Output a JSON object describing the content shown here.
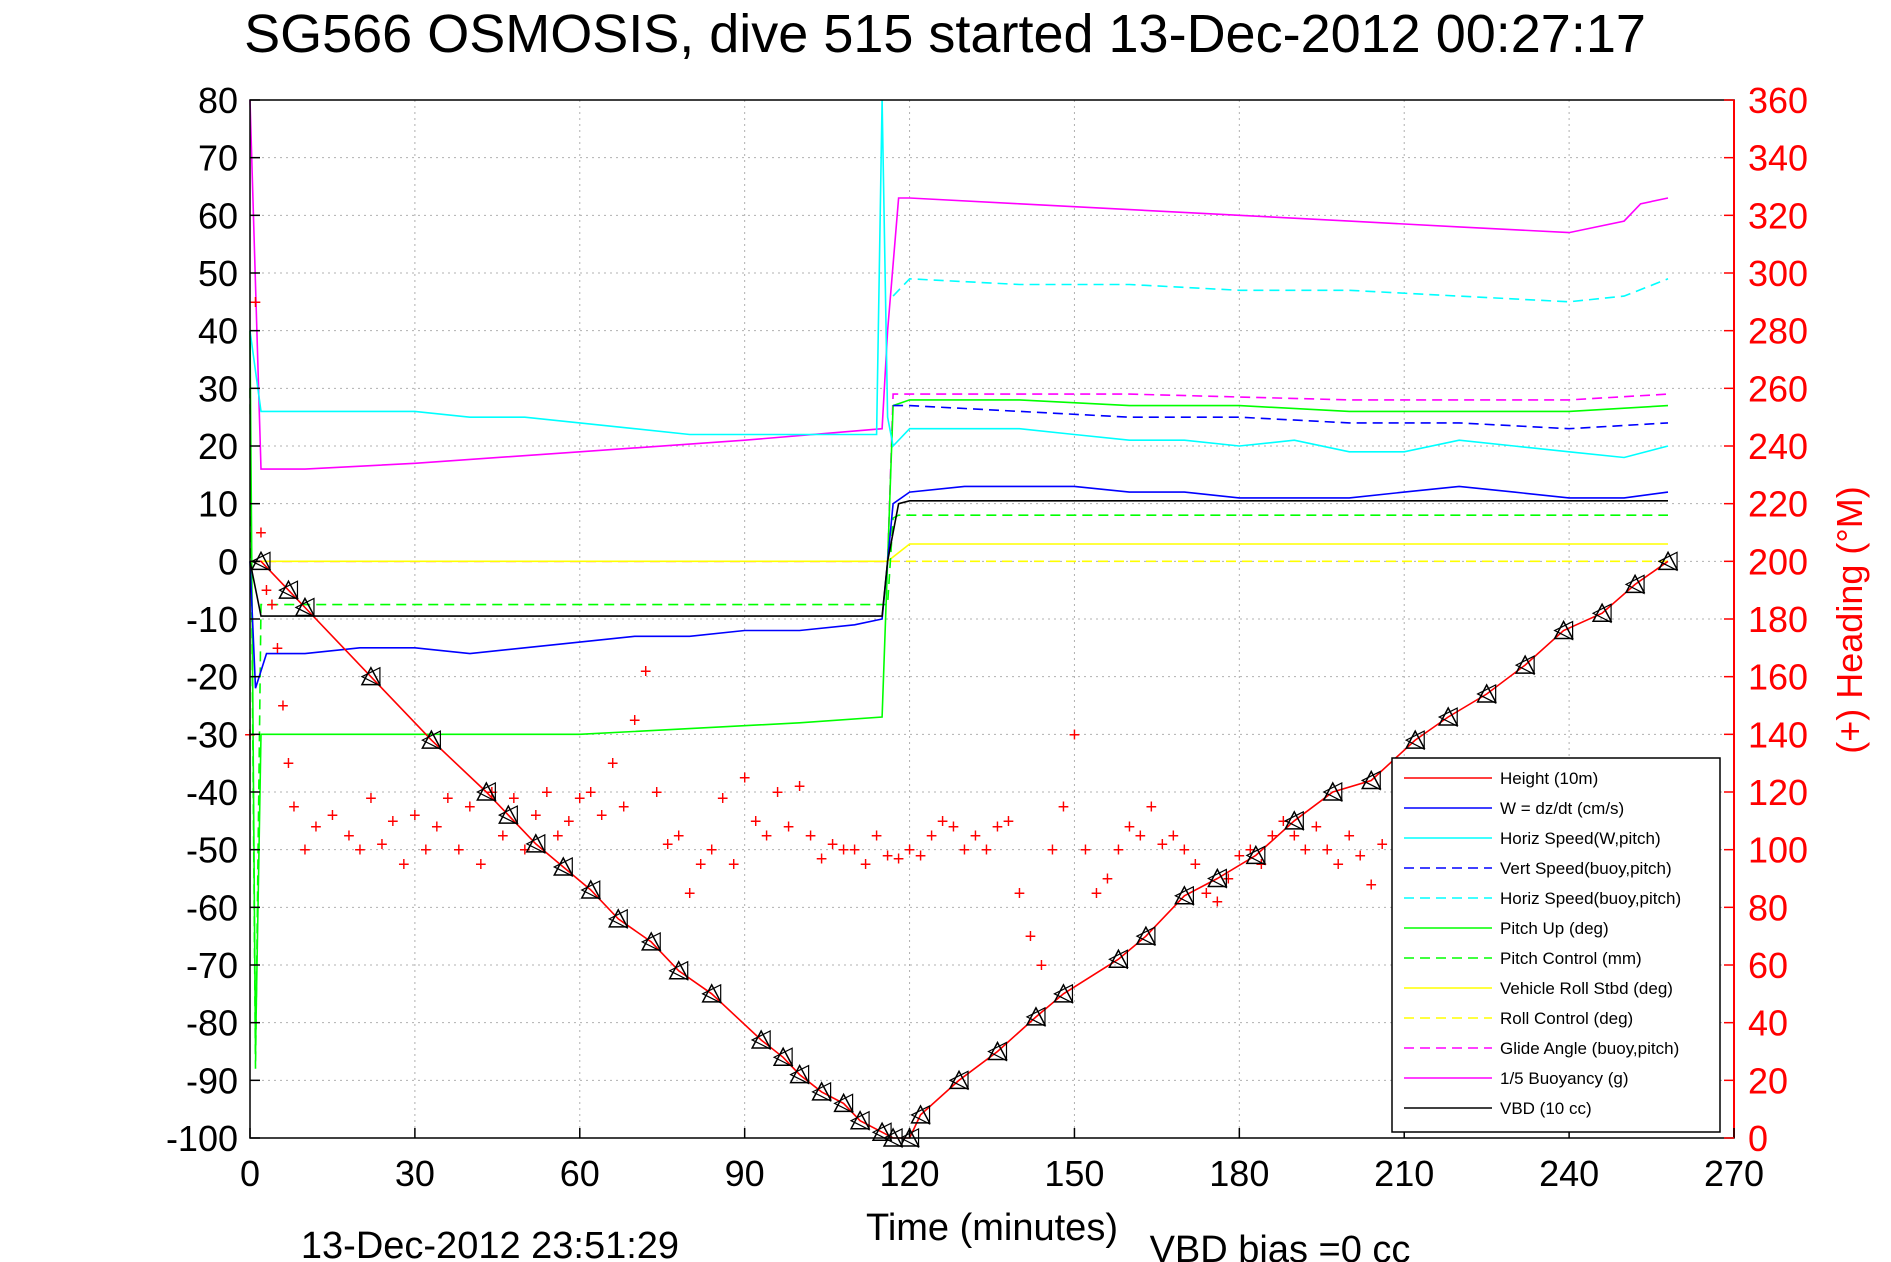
{
  "chart_data": {
    "type": "line",
    "title": "SG566 OSMOSIS, dive 515 started 13-Dec-2012 00:27:17",
    "xlabel": "Time (minutes)",
    "ylabel_right": "(+) Heading (°M)",
    "footer_left": "13-Dec-2012 23:51:29",
    "footer_right": "VBD bias =0 cc",
    "xlim": [
      0,
      270
    ],
    "ylim": [
      -100,
      80
    ],
    "ylim_right": [
      0,
      360
    ],
    "x_ticks": [
      0,
      30,
      60,
      90,
      120,
      150,
      180,
      210,
      240,
      270
    ],
    "y_ticks": [
      80,
      70,
      60,
      50,
      40,
      30,
      20,
      10,
      0,
      -10,
      -20,
      -30,
      -40,
      -50,
      -60,
      -70,
      -80,
      -90,
      -100
    ],
    "y_ticks_right": [
      360,
      340,
      320,
      300,
      280,
      260,
      240,
      220,
      200,
      180,
      160,
      140,
      120,
      100,
      80,
      60,
      40,
      20,
      0
    ],
    "grid": true,
    "legend_position": "bottom-right",
    "colors": {
      "axis_right": "#ff0000",
      "grid": "#b0b0b0"
    },
    "series": [
      {
        "name": "Height (10m)",
        "color": "#ff0000",
        "dash": "solid",
        "x": [
          0,
          2,
          7,
          10,
          22,
          33,
          43,
          47,
          52,
          57,
          62,
          67,
          73,
          78,
          84,
          93,
          97,
          100,
          104,
          108,
          111,
          115,
          117,
          120,
          122,
          129,
          136,
          143,
          148,
          158,
          163,
          170,
          176,
          183,
          190,
          197,
          204,
          212,
          218,
          225,
          232,
          239,
          246,
          252,
          258
        ],
        "y": [
          0,
          0,
          -5,
          -8,
          -20,
          -31,
          -40,
          -44,
          -49,
          -53,
          -57,
          -62,
          -66,
          -71,
          -75,
          -83,
          -86,
          -89,
          -92,
          -94,
          -97,
          -99,
          -100,
          -100,
          -96,
          -90,
          -85,
          -79,
          -75,
          -69,
          -65,
          -58,
          -55,
          -51,
          -45,
          -40,
          -38,
          -31,
          -27,
          -23,
          -18,
          -12,
          -9,
          -4,
          0
        ]
      },
      {
        "name": "W = dz/dt (cm/s)",
        "color": "#0000ff",
        "dash": "solid",
        "x": [
          0,
          1,
          3,
          10,
          20,
          30,
          40,
          50,
          60,
          70,
          80,
          90,
          100,
          110,
          115,
          117,
          120,
          130,
          140,
          150,
          160,
          170,
          180,
          190,
          200,
          210,
          220,
          230,
          240,
          250,
          258
        ],
        "y": [
          0,
          -22,
          -16,
          -16,
          -15,
          -15,
          -16,
          -15,
          -14,
          -13,
          -13,
          -12,
          -12,
          -11,
          -10,
          10,
          12,
          13,
          13,
          13,
          12,
          12,
          11,
          11,
          11,
          12,
          13,
          12,
          11,
          11,
          12
        ]
      },
      {
        "name": "Horiz Speed(W,pitch)",
        "color": "#00ffff",
        "dash": "solid",
        "x": [
          0,
          2,
          10,
          20,
          30,
          40,
          50,
          60,
          70,
          80,
          90,
          100,
          110,
          114,
          115,
          116,
          117,
          120,
          130,
          140,
          150,
          160,
          170,
          180,
          190,
          200,
          210,
          220,
          230,
          240,
          250,
          258
        ],
        "y": [
          40,
          26,
          26,
          26,
          26,
          25,
          25,
          24,
          23,
          22,
          22,
          22,
          22,
          22,
          80,
          25,
          20,
          23,
          23,
          23,
          22,
          21,
          21,
          20,
          21,
          19,
          19,
          21,
          20,
          19,
          18,
          20
        ]
      },
      {
        "name": "Vert Speed(buoy,pitch)",
        "color": "#0000ff",
        "dash": "dashed",
        "x": [
          117,
          120,
          140,
          160,
          180,
          200,
          220,
          240,
          258
        ],
        "y": [
          27,
          27,
          26,
          25,
          25,
          24,
          24,
          23,
          24
        ]
      },
      {
        "name": "Horiz Speed(buoy,pitch)",
        "color": "#00ffff",
        "dash": "dashed",
        "x": [
          117,
          120,
          140,
          160,
          180,
          200,
          220,
          240,
          250,
          258
        ],
        "y": [
          46,
          49,
          48,
          48,
          47,
          47,
          46,
          45,
          46,
          49
        ]
      },
      {
        "name": "Pitch Up (deg)",
        "color": "#00ff00",
        "dash": "solid",
        "x": [
          0,
          1,
          2,
          5,
          20,
          40,
          60,
          80,
          100,
          115,
          116,
          117,
          120,
          140,
          160,
          180,
          200,
          220,
          240,
          258
        ],
        "y": [
          40,
          -85,
          -30,
          -30,
          -30,
          -30,
          -30,
          -29,
          -28,
          -27,
          0,
          27,
          28,
          28,
          27,
          27,
          26,
          26,
          26,
          27
        ]
      },
      {
        "name": "Pitch Control (mm)",
        "color": "#00ff00",
        "dash": "dashed",
        "x": [
          0,
          1,
          2,
          5,
          20,
          60,
          100,
          116,
          117,
          118,
          120,
          160,
          200,
          240,
          258
        ],
        "y": [
          30,
          -88,
          -7.5,
          -7.5,
          -7.5,
          -7.5,
          -7.5,
          -7.5,
          7.5,
          8,
          8,
          8,
          8,
          8,
          8
        ]
      },
      {
        "name": "Vehicle Roll Stbd (deg)",
        "color": "#ffff00",
        "dash": "solid",
        "x": [
          0,
          5,
          20,
          60,
          100,
          116,
          120,
          160,
          200,
          240,
          258
        ],
        "y": [
          0,
          0,
          0,
          0,
          0,
          0,
          3,
          3,
          3,
          3,
          3
        ]
      },
      {
        "name": "Roll Control (deg)",
        "color": "#ffff00",
        "dash": "dashed",
        "x": [
          0,
          5,
          20,
          60,
          100,
          116,
          120,
          160,
          200,
          240,
          258
        ],
        "y": [
          0,
          0,
          0,
          0,
          0,
          0,
          0,
          0,
          0,
          0,
          0
        ]
      },
      {
        "name": "Glide Angle (buoy,pitch)",
        "color": "#ff00ff",
        "dash": "dashed",
        "x": [
          0,
          5,
          20,
          60,
          100,
          116,
          117,
          120,
          160,
          200,
          240,
          258
        ],
        "y": [
          0,
          0,
          0,
          0,
          0,
          0,
          29,
          29,
          29,
          28,
          28,
          29
        ]
      },
      {
        "name": "1/5 Buoyancy (g)",
        "color": "#ff00ff",
        "dash": "solid",
        "x": [
          0,
          2,
          10,
          30,
          60,
          90,
          115,
          116,
          118,
          120,
          140,
          160,
          180,
          200,
          220,
          240,
          245,
          250,
          253,
          258
        ],
        "y": [
          80,
          16,
          16,
          17,
          19,
          21,
          23,
          40,
          63,
          63,
          62,
          61,
          60,
          59,
          58,
          57,
          58,
          59,
          62,
          63
        ]
      },
      {
        "name": "VBD (10 cc)",
        "color": "#000000",
        "dash": "solid",
        "x": [
          0,
          2,
          10,
          40,
          80,
          115,
          116,
          118,
          120,
          160,
          200,
          240,
          258
        ],
        "y": [
          0,
          -9.5,
          -9.5,
          -9.5,
          -9.5,
          -9.5,
          0,
          10,
          10.5,
          10.5,
          10.5,
          10.5,
          10.5
        ]
      }
    ],
    "heading_series": {
      "name": "(+) Heading",
      "color": "#ff0000",
      "marker": "+",
      "x": [
        0,
        1,
        2,
        3,
        4,
        5,
        6,
        7,
        8,
        10,
        12,
        15,
        18,
        20,
        22,
        24,
        26,
        28,
        30,
        32,
        34,
        36,
        38,
        40,
        42,
        44,
        46,
        48,
        50,
        52,
        54,
        56,
        58,
        60,
        62,
        64,
        66,
        68,
        70,
        72,
        74,
        76,
        78,
        80,
        82,
        84,
        86,
        88,
        90,
        92,
        94,
        96,
        98,
        100,
        102,
        104,
        106,
        108,
        110,
        112,
        114,
        116,
        118,
        120,
        122,
        124,
        126,
        128,
        130,
        132,
        134,
        136,
        138,
        140,
        142,
        144,
        146,
        148,
        150,
        152,
        154,
        156,
        158,
        160,
        162,
        164,
        166,
        168,
        170,
        172,
        174,
        176,
        178,
        180,
        182,
        184,
        186,
        188,
        190,
        192,
        194,
        196,
        198,
        200,
        202,
        204,
        206
      ],
      "y": [
        140,
        290,
        210,
        190,
        185,
        170,
        150,
        130,
        115,
        100,
        108,
        112,
        105,
        100,
        118,
        102,
        110,
        95,
        112,
        100,
        108,
        118,
        100,
        115,
        95,
        120,
        105,
        118,
        100,
        112,
        120,
        105,
        110,
        118,
        120,
        112,
        130,
        115,
        145,
        162,
        120,
        102,
        105,
        85,
        95,
        100,
        118,
        95,
        125,
        110,
        105,
        120,
        108,
        122,
        105,
        97,
        102,
        100,
        100,
        95,
        105,
        98,
        97,
        100,
        98,
        105,
        110,
        108,
        100,
        105,
        100,
        108,
        110,
        85,
        70,
        60,
        100,
        115,
        140,
        100,
        85,
        90,
        100,
        108,
        105,
        115,
        102,
        105,
        100,
        95,
        85,
        82,
        90,
        98,
        100,
        95,
        105,
        110,
        105,
        100,
        108,
        100,
        95,
        105,
        98,
        88,
        102
      ]
    },
    "vbd_markers_x": [
      2,
      7,
      10,
      22,
      33,
      43,
      47,
      52,
      57,
      62,
      67,
      73,
      78,
      84,
      93,
      97,
      100,
      104,
      108,
      111,
      115,
      117,
      120,
      122,
      129,
      136,
      143,
      148,
      158,
      163,
      170,
      176,
      183,
      190,
      197,
      204,
      212,
      218,
      225,
      232,
      239,
      246,
      252,
      258
    ]
  }
}
